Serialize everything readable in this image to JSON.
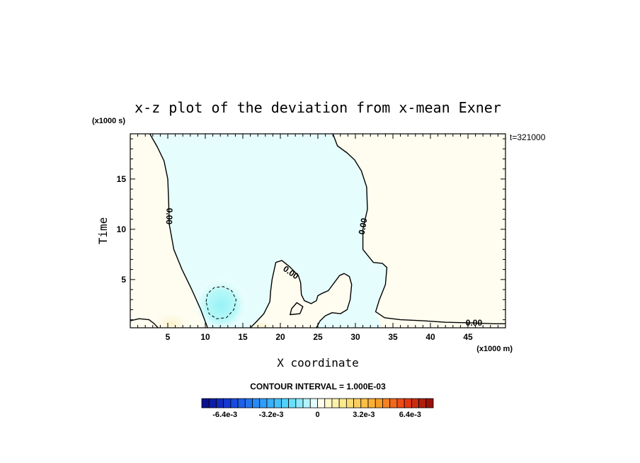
{
  "chart_data": {
    "type": "heatmap",
    "title": "x-z plot of the deviation from x-mean Exner",
    "xlabel": "X coordinate",
    "ylabel": "Time",
    "x_unit_note": "(x1000 m)",
    "y_unit_note": "(x1000 s)",
    "time_stamp": "t=321000",
    "xlim": [
      0,
      50
    ],
    "ylim": [
      0.2,
      19.5
    ],
    "x_ticks": [
      5,
      10,
      15,
      20,
      25,
      30,
      35,
      40,
      45
    ],
    "y_ticks": [
      5,
      10,
      15
    ],
    "contour_interval_label": "CONTOUR INTERVAL = 1.000E-03",
    "contour_labels": [
      {
        "text": "0.00",
        "x": 5.2,
        "y": 11.3,
        "angle": 92
      },
      {
        "text": "0.00",
        "x": 31.0,
        "y": 10.3,
        "angle": -80
      },
      {
        "text": "0.00",
        "x": 21.4,
        "y": 5.7,
        "angle": 35
      },
      {
        "text": "0.00",
        "x": 45.8,
        "y": 0.7,
        "angle": 0
      }
    ],
    "zero_contours": [
      [
        [
          2.6,
          19.5
        ],
        [
          3.6,
          18.2
        ],
        [
          4.5,
          16.8
        ],
        [
          5.0,
          15.0
        ],
        [
          5.1,
          13.0
        ],
        [
          5.2,
          10.5
        ],
        [
          5.8,
          8.0
        ],
        [
          6.9,
          6.0
        ],
        [
          8.2,
          4.0
        ],
        [
          9.4,
          2.0
        ],
        [
          10.3,
          0.2
        ]
      ],
      [
        [
          0.0,
          0.9
        ],
        [
          1.2,
          1.1
        ],
        [
          2.5,
          1.0
        ],
        [
          3.2,
          0.6
        ],
        [
          3.7,
          0.2
        ]
      ],
      [
        [
          27.0,
          19.5
        ],
        [
          27.6,
          18.3
        ],
        [
          28.9,
          17.6
        ],
        [
          29.9,
          16.9
        ],
        [
          30.8,
          15.8
        ],
        [
          31.5,
          14.2
        ],
        [
          31.6,
          12.0
        ],
        [
          31.0,
          10.0
        ],
        [
          31.0,
          8.0
        ],
        [
          32.4,
          6.7
        ],
        [
          33.6,
          6.6
        ],
        [
          34.2,
          6.2
        ],
        [
          34.0,
          4.5
        ],
        [
          33.2,
          3.0
        ],
        [
          32.7,
          1.8
        ],
        [
          33.9,
          1.2
        ],
        [
          36.0,
          1.0
        ],
        [
          39.0,
          0.9
        ],
        [
          42.0,
          0.75
        ],
        [
          45.0,
          0.7
        ],
        [
          48.5,
          0.6
        ],
        [
          50.0,
          0.6
        ]
      ],
      [
        [
          16.0,
          0.2
        ],
        [
          16.8,
          0.8
        ],
        [
          17.8,
          1.6
        ],
        [
          18.6,
          2.8
        ],
        [
          18.7,
          3.8
        ],
        [
          18.9,
          5.0
        ],
        [
          19.4,
          6.7
        ],
        [
          20.2,
          6.9
        ],
        [
          21.2,
          6.3
        ],
        [
          22.4,
          5.4
        ],
        [
          22.7,
          4.7
        ],
        [
          22.8,
          3.5
        ],
        [
          23.2,
          2.9
        ],
        [
          24.1,
          2.6
        ],
        [
          24.8,
          2.9
        ],
        [
          25.0,
          3.4
        ],
        [
          25.5,
          3.6
        ],
        [
          26.4,
          3.9
        ],
        [
          27.2,
          4.7
        ],
        [
          27.9,
          5.4
        ],
        [
          28.5,
          5.6
        ],
        [
          29.2,
          5.3
        ],
        [
          29.5,
          4.5
        ],
        [
          29.3,
          3.0
        ],
        [
          28.9,
          2.0
        ],
        [
          28.0,
          1.6
        ],
        [
          26.9,
          1.7
        ],
        [
          26.0,
          1.4
        ],
        [
          25.3,
          0.9
        ],
        [
          24.8,
          0.2
        ]
      ],
      [
        [
          21.3,
          1.5
        ],
        [
          21.5,
          2.1
        ],
        [
          22.2,
          2.7
        ],
        [
          23.0,
          2.3
        ],
        [
          22.6,
          1.6
        ],
        [
          21.3,
          1.5
        ]
      ]
    ],
    "negative_contours": [
      [
        [
          10.1,
          2.8
        ],
        [
          10.3,
          3.6
        ],
        [
          11.2,
          4.2
        ],
        [
          12.4,
          4.3
        ],
        [
          13.5,
          3.9
        ],
        [
          14.1,
          3.0
        ],
        [
          13.8,
          2.0
        ],
        [
          12.8,
          1.2
        ],
        [
          11.5,
          1.1
        ],
        [
          10.5,
          1.6
        ],
        [
          10.1,
          2.8
        ]
      ]
    ],
    "colorbar": {
      "min": -0.008,
      "max": 0.008,
      "levels": 32,
      "tick_labels": [
        "-6.4e-3",
        "-3.2e-3",
        "0",
        "3.2e-3",
        "6.4e-3"
      ],
      "tick_values": [
        -0.0064,
        -0.0032,
        0,
        0.0032,
        0.0064
      ]
    },
    "colors": {
      "negative_shade": "#e6fdfd",
      "negative_mid": "#b8f8f8",
      "negative_core": "#98f2f6",
      "positive_shade": "#fefdf0",
      "positive_mid": "#fdf6d8",
      "positive_core": "#fcf0c4"
    }
  }
}
